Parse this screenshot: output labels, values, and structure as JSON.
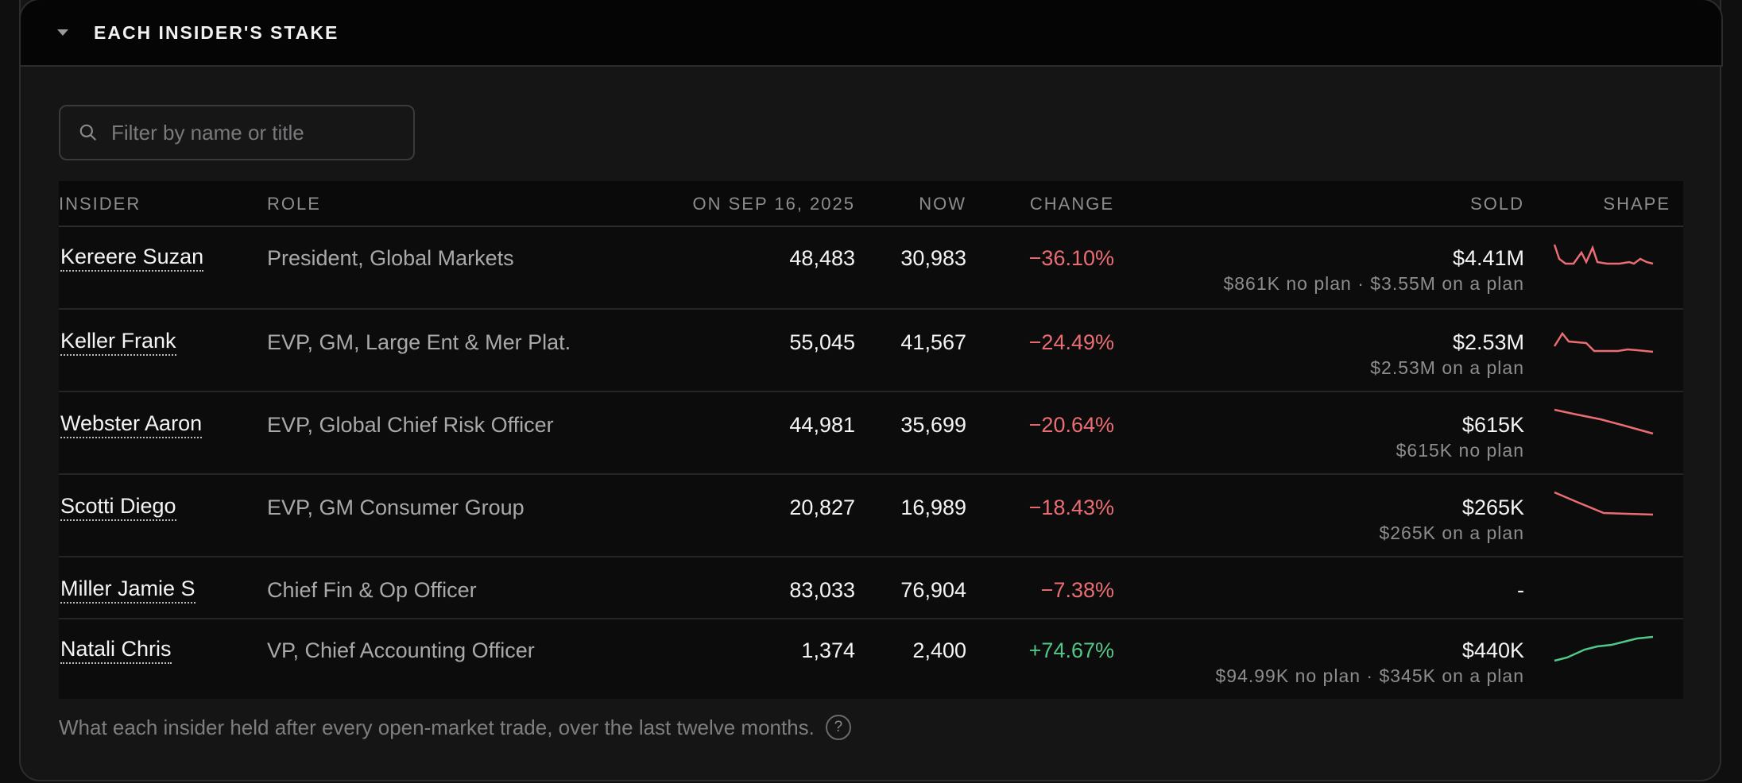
{
  "section": {
    "title": "EACH INSIDER'S STAKE",
    "collapse_icon": "caret-down-icon"
  },
  "search": {
    "placeholder": "Filter by name or title",
    "value": ""
  },
  "columns": {
    "insider": "INSIDER",
    "role": "ROLE",
    "start": "ON SEP 16, 2025",
    "now": "NOW",
    "change": "CHANGE",
    "sold": "SOLD",
    "shape": "SHAPE"
  },
  "rows": [
    {
      "name": "Kereere Suzan",
      "role": "President, Global Markets",
      "start": "48,483",
      "now": "30,983",
      "change": "−36.10%",
      "sold": "$4.41M",
      "sold_detail": "$861K no plan · $3.55M on a plan"
    },
    {
      "name": "Keller Frank",
      "role": "EVP, GM, Large Ent & Mer Plat.",
      "start": "55,045",
      "now": "41,567",
      "change": "−24.49%",
      "sold": "$2.53M",
      "sold_detail": "$2.53M on a plan"
    },
    {
      "name": "Webster Aaron",
      "role": "EVP, Global Chief Risk Officer",
      "start": "44,981",
      "now": "35,699",
      "change": "−20.64%",
      "sold": "$615K",
      "sold_detail": "$615K no plan"
    },
    {
      "name": "Scotti Diego",
      "role": "EVP, GM Consumer Group",
      "start": "20,827",
      "now": "16,989",
      "change": "−18.43%",
      "sold": "$265K",
      "sold_detail": "$265K on a plan"
    },
    {
      "name": "Miller Jamie S",
      "role": "Chief Fin & Op Officer",
      "start": "83,033",
      "now": "76,904",
      "change": "−7.38%",
      "sold": "-",
      "sold_detail": ""
    },
    {
      "name": "Natali Chris",
      "role": "VP, Chief Accounting Officer",
      "start": "1,374",
      "now": "2,400",
      "change": "+74.67%",
      "sold": "$440K",
      "sold_detail": "$94.99K no plan · $345K on a plan"
    }
  ],
  "footer": {
    "text": "What each insider held after every open-market trade, over the last twelve months.",
    "help_glyph": "?"
  },
  "colors": {
    "negative": "#ea6d73",
    "positive": "#52c78a"
  }
}
